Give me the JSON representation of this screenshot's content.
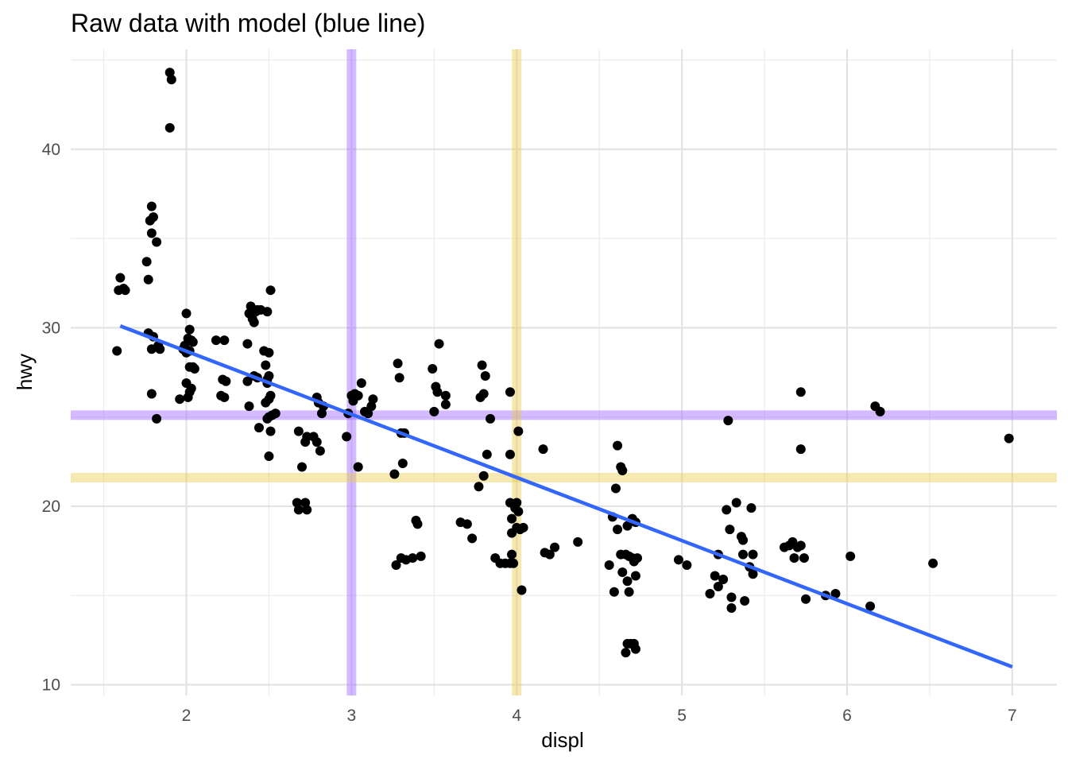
{
  "chart_data": {
    "type": "scatter",
    "title": "Raw data with model (blue line)",
    "xlabel": "displ",
    "ylabel": "hwy",
    "xlim": [
      1.3,
      7.27
    ],
    "ylim": [
      9.4,
      45.6
    ],
    "x_ticks": [
      2,
      3,
      4,
      5,
      6,
      7
    ],
    "x_tick_labels": [
      "2",
      "3",
      "4",
      "5",
      "6",
      "7"
    ],
    "y_ticks": [
      10,
      20,
      30,
      40
    ],
    "y_tick_labels": [
      "10",
      "20",
      "30",
      "40"
    ],
    "grid": true,
    "theme": "minimal",
    "reference_lines": [
      {
        "orientation": "vertical",
        "value": 3.0,
        "color": "#A066FF"
      },
      {
        "orientation": "horizontal",
        "value": 25.1,
        "color": "#A066FF"
      },
      {
        "orientation": "vertical",
        "value": 4.0,
        "color": "#E8CC50"
      },
      {
        "orientation": "horizontal",
        "value": 21.6,
        "color": "#E8CC50"
      }
    ],
    "model_line": {
      "x": [
        1.6,
        7.0
      ],
      "y": [
        30.1,
        11.0
      ],
      "color": "#3366FF"
    },
    "points": [
      [
        1.58,
        28.7
      ],
      [
        1.6,
        32.8
      ],
      [
        1.59,
        32.1
      ],
      [
        1.62,
        32.2
      ],
      [
        1.63,
        32.1
      ],
      [
        1.76,
        33.7
      ],
      [
        1.77,
        32.7
      ],
      [
        1.77,
        29.7
      ],
      [
        1.78,
        36.0
      ],
      [
        1.79,
        35.3
      ],
      [
        1.79,
        36.8
      ],
      [
        1.8,
        36.2
      ],
      [
        1.82,
        34.8
      ],
      [
        1.79,
        28.8
      ],
      [
        1.8,
        29.5
      ],
      [
        1.83,
        29.0
      ],
      [
        1.84,
        28.8
      ],
      [
        1.79,
        26.3
      ],
      [
        1.82,
        24.9
      ],
      [
        1.9,
        44.3
      ],
      [
        1.91,
        43.9
      ],
      [
        1.9,
        41.2
      ],
      [
        1.96,
        26.0
      ],
      [
        1.98,
        28.8
      ],
      [
        1.99,
        29.0
      ],
      [
        2.0,
        28.6
      ],
      [
        2.01,
        29.4
      ],
      [
        2.02,
        28.7
      ],
      [
        2.03,
        29.3
      ],
      [
        2.04,
        29.2
      ],
      [
        2.0,
        30.8
      ],
      [
        2.02,
        29.9
      ],
      [
        2.0,
        26.9
      ],
      [
        2.02,
        26.4
      ],
      [
        2.03,
        26.6
      ],
      [
        2.01,
        26.1
      ],
      [
        2.02,
        27.8
      ],
      [
        2.04,
        27.8
      ],
      [
        2.05,
        27.7
      ],
      [
        2.18,
        29.3
      ],
      [
        2.23,
        29.3
      ],
      [
        2.21,
        26.2
      ],
      [
        2.23,
        26.1
      ],
      [
        2.22,
        27.1
      ],
      [
        2.24,
        27.0
      ],
      [
        2.37,
        29.1
      ],
      [
        2.37,
        27.0
      ],
      [
        2.38,
        25.6
      ],
      [
        2.38,
        30.8
      ],
      [
        2.39,
        31.2
      ],
      [
        2.4,
        30.5
      ],
      [
        2.41,
        30.3
      ],
      [
        2.42,
        30.9
      ],
      [
        2.43,
        31.0
      ],
      [
        2.45,
        31.0
      ],
      [
        2.41,
        27.3
      ],
      [
        2.43,
        27.2
      ],
      [
        2.44,
        24.4
      ],
      [
        2.47,
        28.7
      ],
      [
        2.48,
        27.9
      ],
      [
        2.49,
        26.9
      ],
      [
        2.48,
        25.8
      ],
      [
        2.5,
        26.0
      ],
      [
        2.49,
        24.9
      ],
      [
        2.5,
        25.0
      ],
      [
        2.52,
        25.1
      ],
      [
        2.54,
        25.2
      ],
      [
        2.51,
        24.2
      ],
      [
        2.5,
        22.8
      ],
      [
        2.51,
        32.1
      ],
      [
        2.49,
        30.9
      ],
      [
        2.5,
        27.3
      ],
      [
        2.49,
        27.1
      ],
      [
        2.5,
        28.6
      ],
      [
        2.51,
        26.2
      ],
      [
        2.67,
        20.2
      ],
      [
        2.68,
        19.8
      ],
      [
        2.72,
        20.2
      ],
      [
        2.73,
        19.8
      ],
      [
        2.68,
        24.2
      ],
      [
        2.72,
        23.6
      ],
      [
        2.73,
        23.9
      ],
      [
        2.77,
        23.9
      ],
      [
        2.79,
        26.1
      ],
      [
        2.8,
        25.8
      ],
      [
        2.81,
        23.1
      ],
      [
        2.79,
        23.6
      ],
      [
        2.7,
        22.2
      ],
      [
        2.82,
        25.2
      ],
      [
        2.83,
        25.6
      ],
      [
        2.97,
        23.9
      ],
      [
        2.98,
        25.2
      ],
      [
        3.0,
        26.2
      ],
      [
        3.01,
        25.9
      ],
      [
        3.02,
        26.3
      ],
      [
        3.04,
        26.2
      ],
      [
        3.04,
        22.2
      ],
      [
        3.06,
        26.9
      ],
      [
        3.08,
        25.3
      ],
      [
        3.1,
        25.2
      ],
      [
        3.12,
        25.6
      ],
      [
        3.13,
        26.0
      ],
      [
        3.26,
        21.8
      ],
      [
        3.27,
        16.7
      ],
      [
        3.28,
        28.0
      ],
      [
        3.29,
        27.2
      ],
      [
        3.3,
        17.1
      ],
      [
        3.3,
        24.1
      ],
      [
        3.32,
        24.1
      ],
      [
        3.31,
        22.4
      ],
      [
        3.33,
        17.0
      ],
      [
        3.37,
        17.1
      ],
      [
        3.39,
        19.2
      ],
      [
        3.4,
        19.0
      ],
      [
        3.42,
        17.2
      ],
      [
        3.49,
        27.7
      ],
      [
        3.5,
        25.3
      ],
      [
        3.51,
        26.7
      ],
      [
        3.52,
        26.4
      ],
      [
        3.53,
        29.1
      ],
      [
        3.57,
        26.2
      ],
      [
        3.57,
        25.7
      ],
      [
        3.66,
        19.1
      ],
      [
        3.7,
        19.0
      ],
      [
        3.73,
        18.2
      ],
      [
        3.77,
        21.1
      ],
      [
        3.78,
        26.1
      ],
      [
        3.79,
        27.9
      ],
      [
        3.8,
        26.3
      ],
      [
        3.81,
        27.3
      ],
      [
        3.8,
        21.7
      ],
      [
        3.82,
        22.9
      ],
      [
        3.84,
        24.9
      ],
      [
        3.87,
        17.1
      ],
      [
        3.9,
        16.8
      ],
      [
        3.93,
        16.8
      ],
      [
        3.96,
        16.8
      ],
      [
        3.96,
        22.9
      ],
      [
        3.96,
        26.4
      ],
      [
        3.96,
        20.2
      ],
      [
        3.97,
        19.3
      ],
      [
        3.97,
        18.5
      ],
      [
        3.97,
        17.3
      ],
      [
        3.98,
        16.8
      ],
      [
        3.99,
        19.9
      ],
      [
        4.0,
        20.2
      ],
      [
        4.01,
        19.7
      ],
      [
        4.0,
        18.8
      ],
      [
        4.01,
        24.2
      ],
      [
        4.02,
        18.7
      ],
      [
        4.03,
        15.3
      ],
      [
        4.04,
        18.8
      ],
      [
        4.16,
        23.2
      ],
      [
        4.17,
        17.4
      ],
      [
        4.2,
        17.3
      ],
      [
        4.23,
        17.7
      ],
      [
        4.37,
        18.0
      ],
      [
        4.56,
        16.7
      ],
      [
        4.58,
        19.4
      ],
      [
        4.59,
        15.2
      ],
      [
        4.6,
        21.0
      ],
      [
        4.61,
        18.7
      ],
      [
        4.61,
        23.4
      ],
      [
        4.63,
        17.3
      ],
      [
        4.63,
        22.2
      ],
      [
        4.64,
        22.0
      ],
      [
        4.64,
        16.3
      ],
      [
        4.66,
        11.8
      ],
      [
        4.66,
        17.3
      ],
      [
        4.67,
        12.3
      ],
      [
        4.67,
        18.9
      ],
      [
        4.67,
        15.8
      ],
      [
        4.68,
        17.2
      ],
      [
        4.68,
        15.2
      ],
      [
        4.69,
        12.3
      ],
      [
        4.7,
        17.1
      ],
      [
        4.7,
        19.3
      ],
      [
        4.71,
        12.3
      ],
      [
        4.71,
        16.9
      ],
      [
        4.72,
        19.1
      ],
      [
        4.72,
        16.1
      ],
      [
        4.72,
        12.0
      ],
      [
        4.73,
        17.1
      ],
      [
        4.98,
        17.0
      ],
      [
        5.03,
        16.7
      ],
      [
        5.17,
        15.1
      ],
      [
        5.2,
        16.1
      ],
      [
        5.22,
        17.3
      ],
      [
        5.22,
        15.5
      ],
      [
        5.25,
        15.9
      ],
      [
        5.27,
        19.8
      ],
      [
        5.28,
        24.8
      ],
      [
        5.29,
        18.7
      ],
      [
        5.3,
        14.9
      ],
      [
        5.3,
        14.3
      ],
      [
        5.33,
        20.2
      ],
      [
        5.36,
        18.3
      ],
      [
        5.37,
        18.1
      ],
      [
        5.37,
        17.3
      ],
      [
        5.38,
        14.7
      ],
      [
        5.41,
        16.6
      ],
      [
        5.42,
        19.9
      ],
      [
        5.43,
        17.3
      ],
      [
        5.43,
        16.2
      ],
      [
        5.62,
        17.7
      ],
      [
        5.65,
        17.8
      ],
      [
        5.67,
        18.0
      ],
      [
        5.68,
        17.1
      ],
      [
        5.7,
        17.7
      ],
      [
        5.72,
        26.4
      ],
      [
        5.72,
        23.2
      ],
      [
        5.72,
        17.8
      ],
      [
        5.74,
        17.1
      ],
      [
        5.75,
        14.8
      ],
      [
        5.87,
        15.0
      ],
      [
        5.93,
        15.1
      ],
      [
        6.02,
        17.2
      ],
      [
        6.14,
        14.4
      ],
      [
        6.17,
        25.6
      ],
      [
        6.2,
        25.3
      ],
      [
        6.52,
        16.8
      ],
      [
        6.98,
        23.8
      ]
    ]
  }
}
